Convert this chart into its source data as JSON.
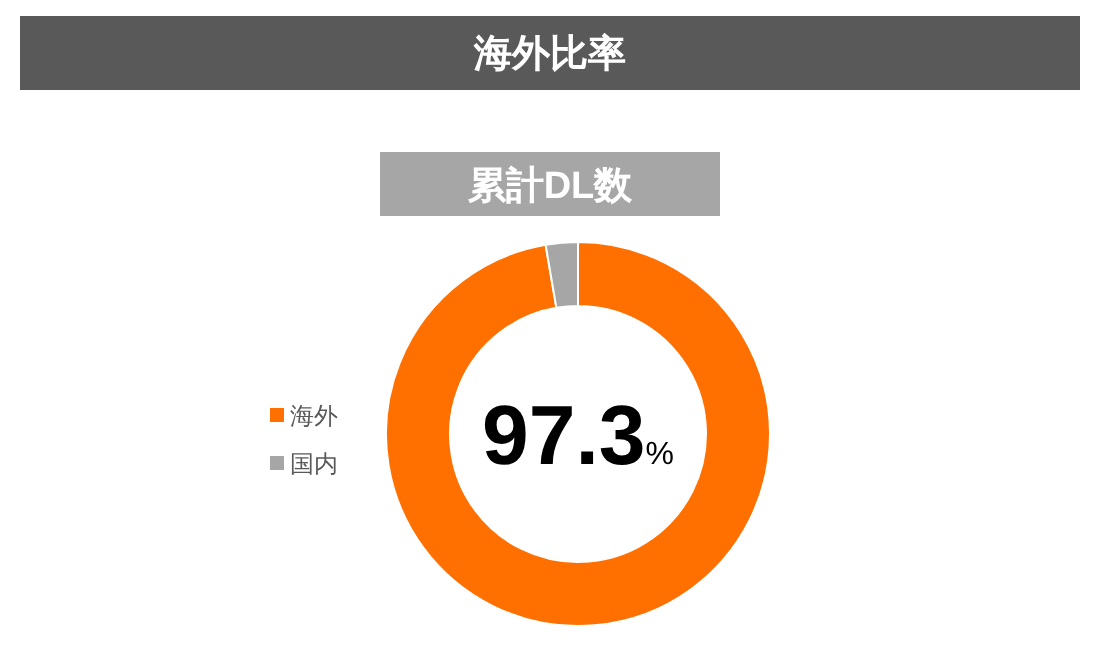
{
  "chart_data": {
    "type": "donut",
    "title": "海外比率",
    "subtitle": "累計DL数",
    "categories": [
      "海外",
      "国内"
    ],
    "values": [
      97.3,
      2.7
    ],
    "colors": [
      "#ff7000",
      "#a6a6a6"
    ],
    "annotations": [
      "97.3%"
    ],
    "legend": "left"
  }
}
